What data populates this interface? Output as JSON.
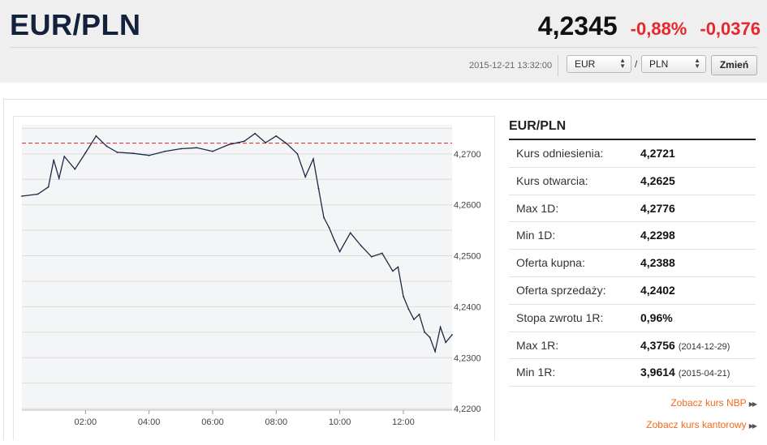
{
  "header": {
    "pair": "EUR/PLN",
    "price": "4,2345",
    "change_pct": "-0,88%",
    "change_abs": "-0,0376",
    "timestamp": "2015-12-21 13:32:00",
    "from_currency": "EUR",
    "to_currency": "PLN",
    "separator": "/",
    "change_button": "Zmień"
  },
  "panel": {
    "title": "EUR/PLN",
    "rows": [
      {
        "label": "Kurs odniesienia:",
        "value": "4,2721",
        "date": ""
      },
      {
        "label": "Kurs otwarcia:",
        "value": "4,2625",
        "date": ""
      },
      {
        "label": "Max 1D:",
        "value": "4,2776",
        "date": ""
      },
      {
        "label": "Min 1D:",
        "value": "4,2298",
        "date": ""
      },
      {
        "label": "Oferta kupna:",
        "value": "4,2388",
        "date": ""
      },
      {
        "label": "Oferta sprzedaży:",
        "value": "4,2402",
        "date": ""
      },
      {
        "label": "Stopa zwrotu 1R:",
        "value": "0,96%",
        "date": ""
      },
      {
        "label": "Max 1R:",
        "value": "4,3756",
        "date": "(2014-12-29)"
      },
      {
        "label": "Min 1R:",
        "value": "3,9614",
        "date": "(2015-04-21)"
      }
    ],
    "links": [
      "Zobacz kurs NBP",
      "Zobacz kurs kantorowy"
    ]
  },
  "colors": {
    "negative": "#e8262c",
    "line": "#1b2a44",
    "reference_line": "#cc2a2a",
    "link": "#f26a1b"
  },
  "chart_data": {
    "type": "line",
    "x_ticks": [
      "02:00",
      "04:00",
      "06:00",
      "08:00",
      "10:00",
      "12:00"
    ],
    "y_ticks": [
      "4,2700",
      "4,2600",
      "4,2500",
      "4,2400",
      "4,2300",
      "4,2200"
    ],
    "ylim": [
      4.2197,
      4.2757
    ],
    "xlim": [
      "00:00",
      "13:32"
    ],
    "reference_line": 4.2721,
    "grid": true,
    "series": [
      {
        "x": [
          "00:00",
          "00:30",
          "00:50",
          "01:00",
          "01:10",
          "01:20",
          "01:40",
          "02:00",
          "02:20",
          "02:40",
          "03:00",
          "03:30",
          "04:00",
          "04:30",
          "05:00",
          "05:30",
          "06:00",
          "06:30",
          "07:00",
          "07:20",
          "07:40",
          "08:00",
          "08:20",
          "08:40",
          "08:55",
          "09:10",
          "09:20",
          "09:30",
          "09:40",
          "09:50",
          "10:00",
          "10:20",
          "10:40",
          "11:00",
          "11:20",
          "11:40",
          "11:50",
          "12:00",
          "12:10",
          "12:20",
          "12:30",
          "12:40",
          "12:50",
          "13:00",
          "13:10",
          "13:20",
          "13:32"
        ],
        "y": [
          4.2617,
          4.2621,
          4.2635,
          4.2688,
          4.2652,
          4.2695,
          4.267,
          4.2702,
          4.2735,
          4.2715,
          4.2703,
          4.2701,
          4.2697,
          4.2705,
          4.271,
          4.2712,
          4.2705,
          4.2718,
          4.2725,
          4.274,
          4.2722,
          4.2735,
          4.272,
          4.27,
          4.2655,
          4.269,
          4.2632,
          4.2575,
          4.2555,
          4.253,
          4.2508,
          4.2545,
          4.252,
          4.2498,
          4.2505,
          4.247,
          4.2478,
          4.242,
          4.2395,
          4.2375,
          4.2385,
          4.235,
          4.234,
          4.2312,
          4.236,
          4.233,
          4.2345
        ]
      }
    ]
  }
}
